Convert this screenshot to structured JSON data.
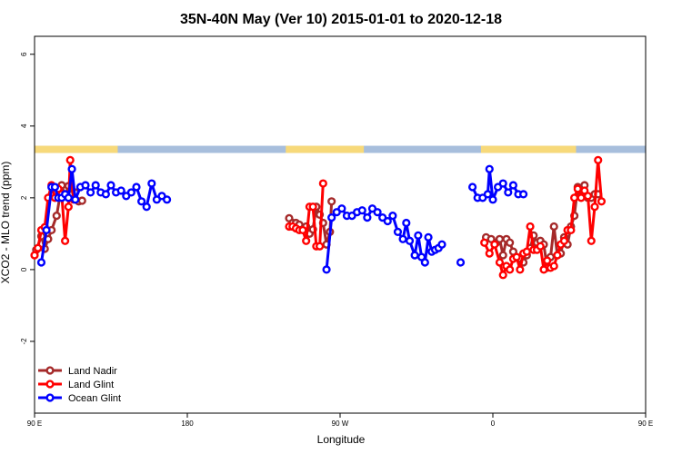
{
  "chart_data": {
    "type": "line",
    "title": "35N-40N May (Ver 10)   2015-01-01 to 2020-12-18",
    "xlabel": "Longitude",
    "ylabel": "XCO2 - MLO trend (ppm)",
    "xlim": [
      90,
      450
    ],
    "ylim": [
      -4,
      6.5
    ],
    "x_ticks": [
      {
        "value": 90,
        "label": "90 E"
      },
      {
        "value": 180,
        "label": "180"
      },
      {
        "value": 270,
        "label": "90 W"
      },
      {
        "value": 360,
        "label": "0"
      },
      {
        "value": 450,
        "label": "90 E"
      },
      {
        "value": 540,
        "label": "180"
      }
    ],
    "y_ticks": [
      {
        "value": -2,
        "label": "-2"
      },
      {
        "value": 0,
        "label": "0"
      },
      {
        "value": 2,
        "label": "2"
      },
      {
        "value": 4,
        "label": "4"
      },
      {
        "value": 6,
        "label": "6"
      }
    ],
    "legend_position": "bottom-left",
    "surface_strip": {
      "y_range": [
        3.25,
        3.45
      ],
      "land_color": "#f7d97a",
      "ocean_color": "#a7bedc",
      "land_ranges": [
        [
          90,
          139
        ],
        [
          238,
          284
        ],
        [
          353,
          409
        ],
        [
          479,
          500
        ],
        [
          567,
          593
        ]
      ]
    },
    "series": [
      {
        "name": "Land Nadir",
        "color": "#a52a2a",
        "segments": [
          [
            [
              91,
              0.55
            ],
            [
              94,
              0.93
            ],
            [
              96,
              0.58
            ],
            [
              98,
              0.85
            ],
            [
              100,
              1.1
            ],
            [
              103,
              1.5
            ],
            [
              106,
              2.35
            ],
            [
              108,
              2.05
            ],
            [
              110,
              2.33
            ],
            [
              112,
              2.1
            ],
            [
              114,
              2.15
            ],
            [
              116,
              1.9
            ],
            [
              118,
              1.92
            ]
          ],
          [
            [
              240,
              1.43
            ],
            [
              242,
              1.3
            ],
            [
              244,
              1.3
            ],
            [
              246,
              1.25
            ],
            [
              248,
              1.12
            ],
            [
              250,
              1.2
            ],
            [
              252,
              1.0
            ],
            [
              254,
              1.12
            ],
            [
              256,
              1.75
            ],
            [
              258,
              1.53
            ],
            [
              260,
              1.3
            ],
            [
              262,
              0.7
            ],
            [
              264,
              1.05
            ],
            [
              265,
              1.9
            ]
          ],
          [
            [
              356,
              0.9
            ],
            [
              359,
              0.85
            ],
            [
              362,
              0.75
            ],
            [
              364,
              0.85
            ],
            [
              366,
              0.4
            ],
            [
              368,
              0.85
            ],
            [
              370,
              0.75
            ],
            [
              372,
              0.5
            ],
            [
              374,
              0.35
            ],
            [
              376,
              0.3
            ],
            [
              378,
              0.2
            ],
            [
              380,
              0.4
            ],
            [
              382,
              0.6
            ],
            [
              384,
              0.95
            ],
            [
              386,
              0.75
            ],
            [
              388,
              0.8
            ],
            [
              390,
              0.7
            ],
            [
              392,
              0.05
            ],
            [
              394,
              0.35
            ],
            [
              396,
              1.2
            ],
            [
              398,
              0.4
            ],
            [
              400,
              0.45
            ],
            [
              402,
              0.9
            ],
            [
              404,
              0.7
            ],
            [
              406,
              1.2
            ],
            [
              408,
              1.5
            ],
            [
              410,
              2.3
            ],
            [
              412,
              2.05
            ],
            [
              414,
              2.35
            ],
            [
              416,
              2.0
            ],
            [
              418,
              2.0
            ],
            [
              420,
              2.1
            ],
            [
              422,
              2.1
            ]
          ]
        ]
      },
      {
        "name": "Land Glint",
        "color": "#ff0000",
        "segments": [
          [
            [
              90,
              0.4
            ],
            [
              92,
              0.6
            ],
            [
              94,
              1.1
            ],
            [
              96,
              1.18
            ],
            [
              98,
              2.0
            ],
            [
              100,
              2.35
            ],
            [
              102,
              2.0
            ],
            [
              104,
              2.25
            ],
            [
              106,
              2.1
            ],
            [
              108,
              0.8
            ],
            [
              110,
              1.75
            ],
            [
              111,
              3.05
            ],
            [
              113,
              1.95
            ]
          ],
          [
            [
              240,
              1.2
            ],
            [
              242,
              1.2
            ],
            [
              244,
              1.15
            ],
            [
              246,
              1.1
            ],
            [
              248,
              1.1
            ],
            [
              250,
              0.8
            ],
            [
              252,
              1.75
            ],
            [
              254,
              1.75
            ],
            [
              256,
              0.65
            ],
            [
              258,
              0.65
            ],
            [
              260,
              2.4
            ]
          ],
          [
            [
              355,
              0.75
            ],
            [
              358,
              0.45
            ],
            [
              361,
              0.7
            ],
            [
              364,
              0.2
            ],
            [
              366,
              -0.15
            ],
            [
              368,
              0.1
            ],
            [
              370,
              0.0
            ],
            [
              372,
              0.3
            ],
            [
              374,
              0.35
            ],
            [
              376,
              0.0
            ],
            [
              378,
              0.45
            ],
            [
              380,
              0.5
            ],
            [
              382,
              1.2
            ],
            [
              384,
              0.55
            ],
            [
              386,
              0.55
            ],
            [
              388,
              0.65
            ],
            [
              390,
              0.0
            ],
            [
              392,
              0.25
            ],
            [
              394,
              0.05
            ],
            [
              396,
              0.1
            ],
            [
              398,
              0.4
            ],
            [
              400,
              0.7
            ],
            [
              402,
              0.8
            ],
            [
              404,
              1.1
            ],
            [
              406,
              1.1
            ],
            [
              408,
              2.0
            ],
            [
              410,
              2.25
            ],
            [
              412,
              2.0
            ],
            [
              414,
              2.2
            ],
            [
              416,
              2.05
            ],
            [
              418,
              0.8
            ],
            [
              420,
              1.75
            ],
            [
              422,
              3.05
            ],
            [
              424,
              1.9
            ]
          ]
        ]
      },
      {
        "name": "Ocean Glint",
        "color": "#0000ff",
        "segments": [
          [
            [
              94,
              0.2
            ],
            [
              97,
              1.1
            ],
            [
              100,
              2.3
            ],
            [
              102,
              2.3
            ],
            [
              104,
              2.0
            ],
            [
              106,
              2.0
            ],
            [
              108,
              2.1
            ],
            [
              110,
              2.0
            ],
            [
              112,
              2.8
            ],
            [
              114,
              1.95
            ],
            [
              117,
              2.3
            ],
            [
              120,
              2.35
            ],
            [
              123,
              2.15
            ],
            [
              126,
              2.35
            ],
            [
              129,
              2.15
            ],
            [
              132,
              2.1
            ],
            [
              135,
              2.35
            ],
            [
              138,
              2.15
            ],
            [
              141,
              2.2
            ],
            [
              144,
              2.05
            ],
            [
              147,
              2.15
            ],
            [
              150,
              2.3
            ],
            [
              153,
              1.9
            ],
            [
              156,
              1.75
            ],
            [
              159,
              2.4
            ],
            [
              162,
              1.95
            ],
            [
              165,
              2.05
            ],
            [
              168,
              1.95
            ]
          ],
          [
            [
              262,
              0.0
            ],
            [
              265,
              1.45
            ],
            [
              268,
              1.6
            ],
            [
              271,
              1.7
            ],
            [
              274,
              1.5
            ],
            [
              277,
              1.5
            ],
            [
              280,
              1.6
            ],
            [
              283,
              1.65
            ],
            [
              286,
              1.45
            ],
            [
              289,
              1.7
            ],
            [
              292,
              1.6
            ],
            [
              295,
              1.45
            ],
            [
              298,
              1.35
            ],
            [
              301,
              1.5
            ],
            [
              304,
              1.05
            ],
            [
              307,
              0.85
            ],
            [
              309,
              1.3
            ],
            [
              311,
              0.8
            ],
            [
              314,
              0.4
            ],
            [
              316,
              0.95
            ],
            [
              318,
              0.35
            ],
            [
              320,
              0.2
            ],
            [
              322,
              0.9
            ],
            [
              324,
              0.5
            ],
            [
              326,
              0.55
            ],
            [
              328,
              0.6
            ],
            [
              330,
              0.7
            ]
          ],
          [
            [
              341,
              0.2
            ]
          ],
          [
            [
              348,
              2.3
            ],
            [
              351,
              2.0
            ],
            [
              354,
              2.0
            ],
            [
              357,
              2.1
            ],
            [
              358,
              2.8
            ],
            [
              360,
              1.95
            ],
            [
              363,
              2.3
            ],
            [
              366,
              2.4
            ],
            [
              369,
              2.15
            ],
            [
              372,
              2.35
            ],
            [
              375,
              2.1
            ],
            [
              378,
              2.1
            ]
          ]
        ]
      }
    ]
  }
}
